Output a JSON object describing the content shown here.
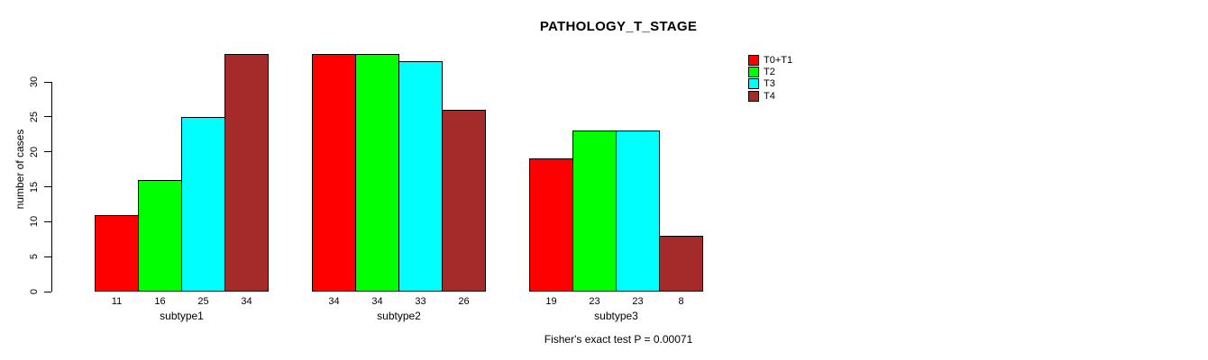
{
  "chart_data": {
    "type": "bar",
    "title": "PATHOLOGY_T_STAGE",
    "ylabel": "number of cases",
    "xlabel": "",
    "categories": [
      "subtype1",
      "subtype2",
      "subtype3"
    ],
    "series": [
      {
        "name": "T0+T1",
        "color": "#FF0000",
        "values": [
          11,
          34,
          19
        ]
      },
      {
        "name": "T2",
        "color": "#00FF00",
        "values": [
          16,
          34,
          23
        ]
      },
      {
        "name": "T3",
        "color": "#00FFFF",
        "values": [
          25,
          33,
          23
        ]
      },
      {
        "name": "T4",
        "color": "#A52A2A",
        "values": [
          34,
          26,
          8
        ]
      }
    ],
    "bar_value_labels": [
      [
        "11",
        "16",
        "25",
        "34"
      ],
      [
        "34",
        "34",
        "33",
        "26"
      ],
      [
        "19",
        "23",
        "23",
        "8"
      ]
    ],
    "yticks": [
      "0",
      "5",
      "10",
      "15",
      "20",
      "25",
      "30"
    ],
    "ylim": [
      0,
      35
    ],
    "grid": false,
    "legend_position": "top-right",
    "legend_entries": [
      "T0+T1",
      "T2",
      "T3",
      "T4"
    ],
    "annotation": "Fisher's exact test P = 0.00071"
  }
}
